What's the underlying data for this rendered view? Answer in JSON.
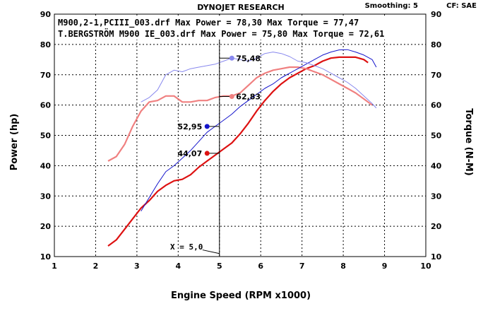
{
  "chart_data": {
    "type": "line",
    "header": {
      "title": "DYNOJET RESEARCH",
      "smoothing": "Smoothing: 5",
      "cf": "CF: SAE"
    },
    "legend": [
      "M900,2-1,PCIII_003.drf Max Power = 78,30 Max Torque = 77,47",
      "T.BERGSTRÖM M900 IE_003.drf Max Power = 75,80 Max Torque = 72,61"
    ],
    "xlabel": "Engine Speed (RPM x1000)",
    "ylabel_left": "Power (hp)",
    "ylabel_right": "Torque (N-M)",
    "xlim": [
      1,
      10
    ],
    "ylim": [
      10,
      90
    ],
    "x_ticks": [
      "1",
      "2",
      "3",
      "4",
      "5",
      "6",
      "7",
      "8",
      "9",
      "10"
    ],
    "y_ticks": [
      "10",
      "20",
      "30",
      "40",
      "50",
      "60",
      "70",
      "80",
      "90"
    ],
    "grid": true,
    "cursor": {
      "x": 5.0,
      "label": "X = 5,0"
    },
    "colors": {
      "power_a": "#dd1111",
      "torque_a": "#f08080",
      "power_b": "#1515cc",
      "torque_b": "#8888ee",
      "grid": "#000000",
      "cursor": "#000000"
    },
    "series": [
      {
        "key": "power_a",
        "points": [
          [
            2.3,
            13.5
          ],
          [
            2.5,
            15.5
          ],
          [
            2.7,
            19
          ],
          [
            2.9,
            22.5
          ],
          [
            3.1,
            26
          ],
          [
            3.3,
            28.5
          ],
          [
            3.5,
            31.5
          ],
          [
            3.7,
            33.5
          ],
          [
            3.9,
            35
          ],
          [
            4.1,
            35.5
          ],
          [
            4.3,
            37
          ],
          [
            4.5,
            39.5
          ],
          [
            4.7,
            41.5
          ],
          [
            4.9,
            43.5
          ],
          [
            5.1,
            45.5
          ],
          [
            5.3,
            47.5
          ],
          [
            5.5,
            50.5
          ],
          [
            5.7,
            54
          ],
          [
            5.9,
            58
          ],
          [
            6.1,
            61.5
          ],
          [
            6.3,
            64.5
          ],
          [
            6.5,
            67
          ],
          [
            6.7,
            69
          ],
          [
            6.9,
            70.5
          ],
          [
            7.1,
            72
          ],
          [
            7.3,
            73
          ],
          [
            7.5,
            74.5
          ],
          [
            7.7,
            75.5
          ],
          [
            7.9,
            75.8
          ],
          [
            8.1,
            75.8
          ],
          [
            8.3,
            75.8
          ],
          [
            8.5,
            75
          ],
          [
            8.6,
            74
          ]
        ]
      },
      {
        "key": "torque_a",
        "points": [
          [
            2.3,
            41.5
          ],
          [
            2.5,
            43
          ],
          [
            2.7,
            47
          ],
          [
            2.9,
            53
          ],
          [
            3.1,
            58
          ],
          [
            3.3,
            61
          ],
          [
            3.5,
            61.5
          ],
          [
            3.7,
            63
          ],
          [
            3.9,
            63
          ],
          [
            4.1,
            61
          ],
          [
            4.3,
            61
          ],
          [
            4.5,
            61.5
          ],
          [
            4.7,
            61.5
          ],
          [
            4.9,
            62.5
          ],
          [
            5.1,
            63
          ],
          [
            5.3,
            63
          ],
          [
            5.5,
            64
          ],
          [
            5.7,
            66.5
          ],
          [
            5.9,
            69
          ],
          [
            6.1,
            70.5
          ],
          [
            6.3,
            71.5
          ],
          [
            6.5,
            72
          ],
          [
            6.7,
            72.5
          ],
          [
            6.9,
            72.5
          ],
          [
            7.1,
            72
          ],
          [
            7.3,
            71
          ],
          [
            7.5,
            70
          ],
          [
            7.7,
            68.5
          ],
          [
            7.9,
            67
          ],
          [
            8.1,
            65.5
          ],
          [
            8.3,
            64
          ],
          [
            8.5,
            62
          ],
          [
            8.7,
            60
          ]
        ]
      },
      {
        "key": "power_b",
        "points": [
          [
            3.1,
            25
          ],
          [
            3.3,
            29.5
          ],
          [
            3.5,
            34
          ],
          [
            3.7,
            38
          ],
          [
            3.9,
            40
          ],
          [
            4.1,
            42.5
          ],
          [
            4.3,
            45
          ],
          [
            4.5,
            48
          ],
          [
            4.7,
            51
          ],
          [
            4.9,
            53
          ],
          [
            5.1,
            55
          ],
          [
            5.3,
            57
          ],
          [
            5.5,
            59.5
          ],
          [
            5.7,
            61.5
          ],
          [
            5.9,
            63.5
          ],
          [
            6.1,
            65.5
          ],
          [
            6.3,
            67
          ],
          [
            6.5,
            69
          ],
          [
            6.7,
            70.5
          ],
          [
            6.9,
            72
          ],
          [
            7.1,
            73.5
          ],
          [
            7.3,
            75
          ],
          [
            7.5,
            76.5
          ],
          [
            7.7,
            77.5
          ],
          [
            7.9,
            78.2
          ],
          [
            8.1,
            78.3
          ],
          [
            8.3,
            77.5
          ],
          [
            8.5,
            76.5
          ],
          [
            8.7,
            75
          ],
          [
            8.8,
            72.5
          ]
        ]
      },
      {
        "key": "torque_b",
        "points": [
          [
            3.1,
            61
          ],
          [
            3.3,
            62.5
          ],
          [
            3.5,
            65
          ],
          [
            3.7,
            70
          ],
          [
            3.9,
            71.5
          ],
          [
            4.1,
            71
          ],
          [
            4.3,
            72
          ],
          [
            4.5,
            72.5
          ],
          [
            4.7,
            73
          ],
          [
            4.9,
            73.5
          ],
          [
            5.1,
            74.5
          ],
          [
            5.3,
            75.5
          ],
          [
            5.5,
            75
          ],
          [
            5.7,
            74.5
          ],
          [
            5.9,
            75.5
          ],
          [
            6.1,
            77
          ],
          [
            6.3,
            77.5
          ],
          [
            6.5,
            77
          ],
          [
            6.7,
            76
          ],
          [
            6.9,
            74.5
          ],
          [
            7.1,
            74
          ],
          [
            7.3,
            73
          ],
          [
            7.5,
            72
          ],
          [
            7.7,
            70.5
          ],
          [
            7.9,
            69
          ],
          [
            8.1,
            67.5
          ],
          [
            8.3,
            65.5
          ],
          [
            8.5,
            63
          ],
          [
            8.7,
            60.5
          ],
          [
            8.8,
            59
          ]
        ]
      }
    ],
    "markers": [
      {
        "label": "75,48",
        "x": 5.3,
        "y": 75.48,
        "color": "#8888ee",
        "side": "right"
      },
      {
        "label": "62,83",
        "x": 5.3,
        "y": 62.83,
        "color": "#f08080",
        "side": "right"
      },
      {
        "label": "52,95",
        "x": 4.7,
        "y": 52.95,
        "color": "#1515cc",
        "side": "left"
      },
      {
        "label": "44,07",
        "x": 4.7,
        "y": 44.07,
        "color": "#dd1111",
        "side": "left"
      }
    ]
  }
}
